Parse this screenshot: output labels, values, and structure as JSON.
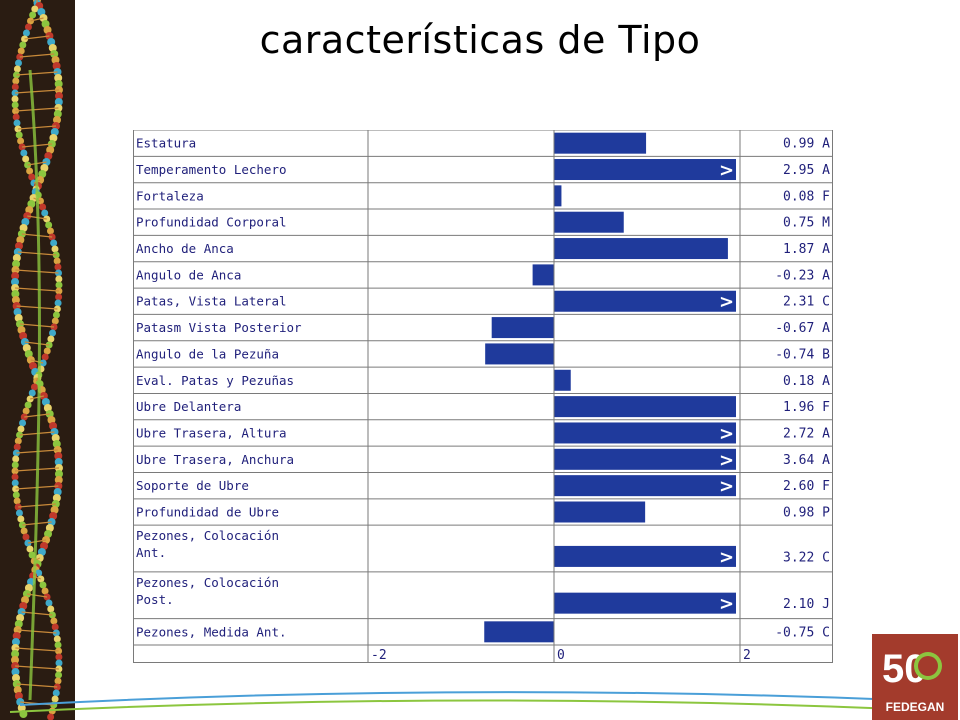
{
  "slide": {
    "title": "características de Tipo"
  },
  "logo": {
    "text": "FEDEGAN",
    "number": "50"
  },
  "colors": {
    "bar": "#1f3a9c",
    "text": "#1f1f7a",
    "grid": "#7a7a7a",
    "logo_bg": "#a33b2c",
    "logo_accent": "#8cc63f"
  },
  "chart_data": {
    "type": "bar",
    "orientation": "horizontal",
    "xlim": [
      -2,
      2
    ],
    "xticks": [
      "-2",
      "0",
      "2"
    ],
    "overflow_marker": ">",
    "rows": [
      {
        "label": "Estatura",
        "value": 0.99,
        "display": "0.99 A",
        "overflow": false
      },
      {
        "label": "Temperamento Lechero",
        "value": 2.95,
        "display": "2.95 A",
        "overflow": true
      },
      {
        "label": "Fortaleza",
        "value": 0.08,
        "display": "0.08 F",
        "overflow": false
      },
      {
        "label": "Profundidad Corporal",
        "value": 0.75,
        "display": "0.75 M",
        "overflow": false
      },
      {
        "label": "Ancho de Anca",
        "value": 1.87,
        "display": "1.87 A",
        "overflow": false
      },
      {
        "label": "Angulo de Anca",
        "value": -0.23,
        "display": "-0.23 A",
        "overflow": false
      },
      {
        "label": "Patas, Vista Lateral",
        "value": 2.31,
        "display": "2.31 C",
        "overflow": true
      },
      {
        "label": "Patasm Vista Posterior",
        "value": -0.67,
        "display": "-0.67 A",
        "overflow": false
      },
      {
        "label": "Angulo de la Pezuña",
        "value": -0.74,
        "display": "-0.74 B",
        "overflow": false
      },
      {
        "label": "Eval. Patas y Pezuñas",
        "value": 0.18,
        "display": "0.18 A",
        "overflow": false
      },
      {
        "label": "Ubre Delantera",
        "value": 1.96,
        "display": "1.96 F",
        "overflow": false
      },
      {
        "label": "Ubre Trasera, Altura",
        "value": 2.72,
        "display": "2.72 A",
        "overflow": true
      },
      {
        "label": "Ubre Trasera, Anchura",
        "value": 3.64,
        "display": "3.64 A",
        "overflow": true
      },
      {
        "label": "Soporte de Ubre",
        "value": 2.6,
        "display": "2.60 F",
        "overflow": true
      },
      {
        "label": "Profundidad de Ubre",
        "value": 0.98,
        "display": "0.98 P",
        "overflow": false
      },
      {
        "label": "Pezones, Colocación Ant.",
        "value": 3.22,
        "display": "3.22 C",
        "overflow": true
      },
      {
        "label": "Pezones, Colocación Post.",
        "value": 2.1,
        "display": "2.10 J",
        "overflow": true
      },
      {
        "label": "Pezones, Medida Ant.",
        "value": -0.75,
        "display": "-0.75 C",
        "overflow": false
      }
    ]
  }
}
